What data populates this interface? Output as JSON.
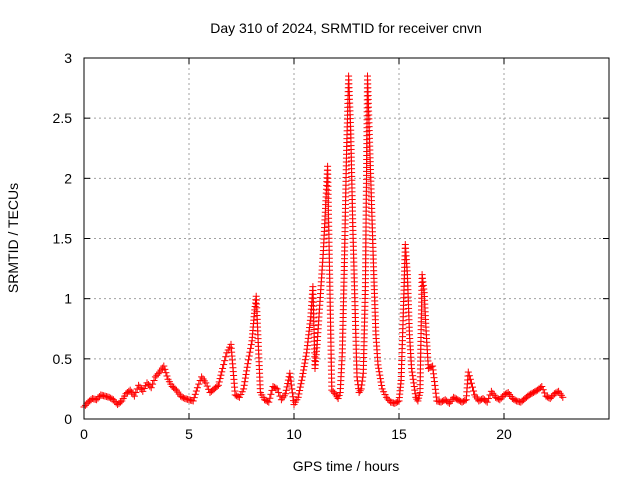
{
  "chart_data": {
    "type": "scatter",
    "title": "Day 310 of 2024, SRMTID for receiver cnvn",
    "xlabel": "GPS time / hours",
    "ylabel": "SRMTID / TECUs",
    "xlim": [
      0,
      25
    ],
    "ylim": [
      0,
      3
    ],
    "x_ticks": [
      0,
      5,
      10,
      15,
      20
    ],
    "x_tick_labels": [
      "0",
      "5",
      "10",
      "15",
      "20"
    ],
    "y_ticks": [
      0,
      0.5,
      1,
      1.5,
      2,
      2.5,
      3
    ],
    "y_tick_labels": [
      "0",
      "0.5",
      "1",
      "1.5",
      "2",
      "2.5",
      "3"
    ],
    "grid": true,
    "marker": "+",
    "color": "#ff0000",
    "series": [
      {
        "name": "SRMTID",
        "x": [
          0.0,
          0.2,
          0.4,
          0.6,
          0.8,
          1.0,
          1.2,
          1.4,
          1.6,
          1.8,
          2.0,
          2.2,
          2.4,
          2.6,
          2.8,
          3.0,
          3.2,
          3.4,
          3.6,
          3.8,
          4.0,
          4.2,
          4.4,
          4.6,
          4.8,
          5.0,
          5.2,
          5.4,
          5.6,
          5.8,
          6.0,
          6.2,
          6.4,
          6.6,
          6.8,
          7.0,
          7.2,
          7.4,
          7.6,
          7.8,
          8.0,
          8.1,
          8.2,
          8.4,
          8.6,
          8.8,
          9.0,
          9.2,
          9.4,
          9.6,
          9.8,
          10.0,
          10.2,
          10.4,
          10.6,
          10.8,
          10.9,
          11.0,
          11.1,
          11.2,
          11.4,
          11.6,
          11.8,
          12.0,
          12.1,
          12.2,
          12.3,
          12.4,
          12.5,
          12.6,
          12.7,
          12.8,
          13.0,
          13.1,
          13.2,
          13.3,
          13.4,
          13.5,
          13.6,
          13.7,
          13.8,
          13.9,
          14.0,
          14.2,
          14.4,
          14.6,
          14.8,
          15.0,
          15.1,
          15.2,
          15.3,
          15.4,
          15.5,
          15.6,
          15.8,
          15.9,
          16.0,
          16.1,
          16.2,
          16.3,
          16.4,
          16.6,
          16.8,
          17.0,
          17.2,
          17.4,
          17.6,
          17.8,
          18.0,
          18.2,
          18.3,
          18.4,
          18.6,
          18.8,
          19.0,
          19.2,
          19.4,
          19.6,
          19.8,
          20.0,
          20.2,
          20.4,
          20.6,
          20.8,
          21.0,
          21.2,
          21.4,
          21.6,
          21.8,
          22.0,
          22.2,
          22.4,
          22.6,
          22.8
        ],
        "y": [
          0.1,
          0.14,
          0.17,
          0.16,
          0.2,
          0.19,
          0.18,
          0.16,
          0.12,
          0.15,
          0.21,
          0.24,
          0.19,
          0.28,
          0.23,
          0.3,
          0.26,
          0.35,
          0.39,
          0.44,
          0.33,
          0.27,
          0.24,
          0.19,
          0.17,
          0.16,
          0.15,
          0.26,
          0.35,
          0.3,
          0.22,
          0.25,
          0.28,
          0.42,
          0.55,
          0.62,
          0.2,
          0.18,
          0.25,
          0.46,
          0.65,
          0.85,
          1.02,
          0.22,
          0.16,
          0.14,
          0.27,
          0.25,
          0.16,
          0.21,
          0.38,
          0.12,
          0.18,
          0.35,
          0.55,
          0.85,
          1.1,
          0.42,
          0.62,
          0.88,
          1.4,
          2.1,
          0.24,
          0.2,
          0.17,
          0.22,
          0.55,
          1.3,
          2.2,
          2.85,
          2.4,
          1.6,
          0.35,
          0.22,
          0.25,
          0.38,
          1.1,
          2.85,
          2.3,
          1.75,
          1.2,
          0.7,
          0.45,
          0.25,
          0.18,
          0.14,
          0.13,
          0.15,
          0.32,
          0.85,
          1.45,
          1.2,
          0.7,
          0.42,
          0.18,
          0.15,
          0.22,
          1.2,
          1.05,
          0.7,
          0.42,
          0.44,
          0.15,
          0.14,
          0.16,
          0.13,
          0.18,
          0.16,
          0.14,
          0.16,
          0.39,
          0.33,
          0.2,
          0.15,
          0.17,
          0.14,
          0.23,
          0.18,
          0.16,
          0.2,
          0.22,
          0.17,
          0.15,
          0.14,
          0.17,
          0.2,
          0.22,
          0.24,
          0.27,
          0.19,
          0.17,
          0.21,
          0.23,
          0.18
        ]
      }
    ]
  }
}
